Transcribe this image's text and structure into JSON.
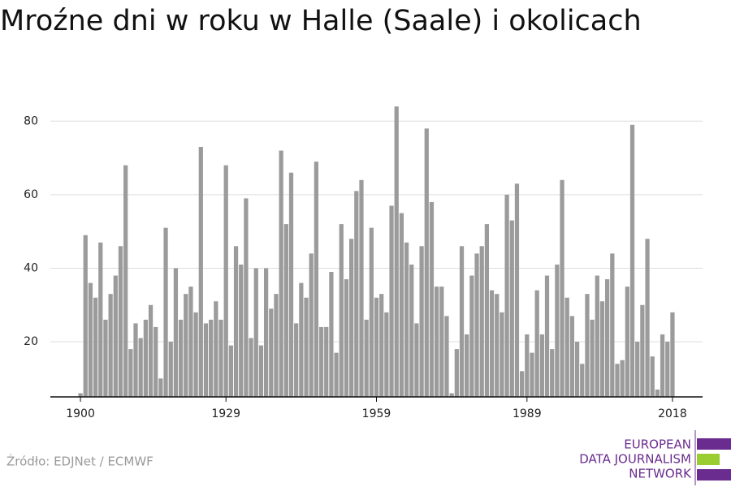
{
  "chart_data": {
    "type": "bar",
    "title": "Mroźne dni w roku w Halle (Saale) i okolicach",
    "x": [
      1900,
      1901,
      1902,
      1903,
      1904,
      1905,
      1906,
      1907,
      1908,
      1909,
      1910,
      1911,
      1912,
      1913,
      1914,
      1915,
      1916,
      1917,
      1918,
      1919,
      1920,
      1921,
      1922,
      1923,
      1924,
      1925,
      1926,
      1927,
      1928,
      1929,
      1930,
      1931,
      1932,
      1933,
      1934,
      1935,
      1936,
      1937,
      1938,
      1939,
      1940,
      1941,
      1942,
      1943,
      1944,
      1945,
      1946,
      1947,
      1948,
      1949,
      1950,
      1951,
      1952,
      1953,
      1954,
      1955,
      1956,
      1957,
      1958,
      1959,
      1960,
      1961,
      1962,
      1963,
      1964,
      1965,
      1966,
      1967,
      1968,
      1969,
      1970,
      1971,
      1972,
      1973,
      1974,
      1975,
      1976,
      1977,
      1978,
      1979,
      1980,
      1981,
      1982,
      1983,
      1984,
      1985,
      1986,
      1987,
      1988,
      1989,
      1990,
      1991,
      1992,
      1993,
      1994,
      1995,
      1996,
      1997,
      1998,
      1999,
      2000,
      2001,
      2002,
      2003,
      2004,
      2005,
      2006,
      2007,
      2008,
      2009,
      2010,
      2011,
      2012,
      2013,
      2014,
      2015,
      2016,
      2017,
      2018
    ],
    "values": [
      6,
      49,
      36,
      32,
      47,
      26,
      33,
      38,
      46,
      68,
      18,
      25,
      21,
      26,
      30,
      24,
      10,
      51,
      20,
      40,
      26,
      33,
      35,
      28,
      73,
      25,
      26,
      31,
      26,
      68,
      19,
      46,
      41,
      59,
      21,
      40,
      19,
      40,
      29,
      33,
      72,
      52,
      66,
      25,
      36,
      32,
      44,
      69,
      24,
      24,
      39,
      17,
      52,
      37,
      48,
      61,
      64,
      26,
      51,
      32,
      33,
      28,
      57,
      84,
      55,
      47,
      41,
      25,
      46,
      78,
      58,
      35,
      35,
      27,
      6,
      18,
      46,
      22,
      38,
      44,
      46,
      52,
      34,
      33,
      28,
      60,
      53,
      63,
      12,
      22,
      17,
      34,
      22,
      38,
      18,
      41,
      64,
      32,
      27,
      20,
      14,
      33,
      26,
      38,
      31,
      37,
      44,
      14,
      15,
      35,
      79,
      20,
      30,
      48,
      16,
      7,
      22,
      20,
      28
    ],
    "color": "#9b9b9b",
    "xlim": [
      1894,
      2024
    ],
    "xticks": [
      1900,
      1929,
      1959,
      1989,
      2018
    ],
    "ylim": [
      5,
      90
    ],
    "yticks": [
      20,
      40,
      60,
      80
    ],
    "grid": true,
    "source": "Źródło: EDJNet / ECMWF"
  },
  "logo": {
    "lines": [
      "EUROPEAN",
      "DATA JOURNALISM",
      "NETWORK"
    ]
  }
}
